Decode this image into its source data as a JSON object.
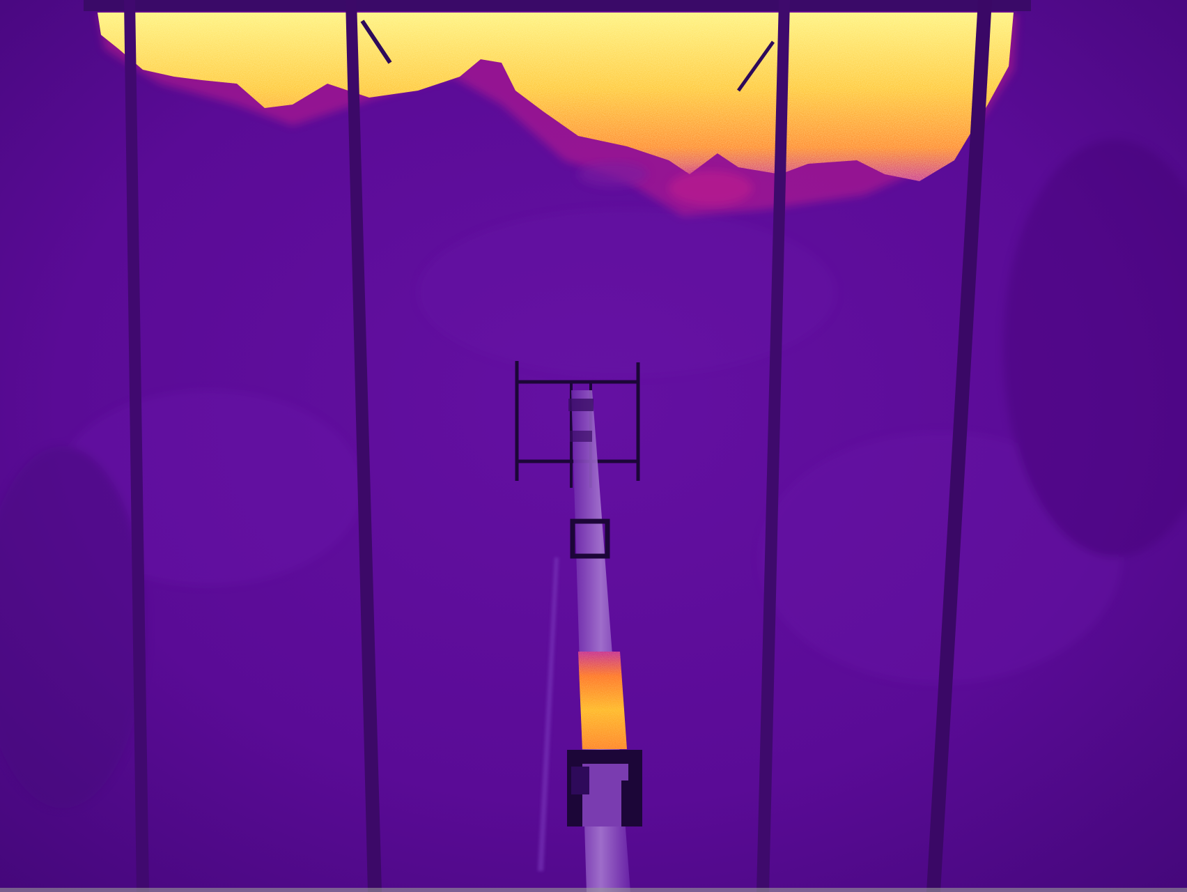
{
  "image": {
    "kind": "thermal-camera-photo",
    "palette": {
      "background_dark": "#46077d",
      "background_mid": "#5c0b99",
      "background_light": "#6a12aa",
      "hot_core": "#fff27a",
      "hot_mid": "#ffb21a",
      "hot_edge": "#ff5a1e",
      "warm_edge": "#c21d8e",
      "structure_dark": "#1c0638",
      "structure_mid": "#2e0a5a",
      "pipe_body": "#7d3fb5",
      "pipe_highlight": "#a678d0"
    }
  }
}
